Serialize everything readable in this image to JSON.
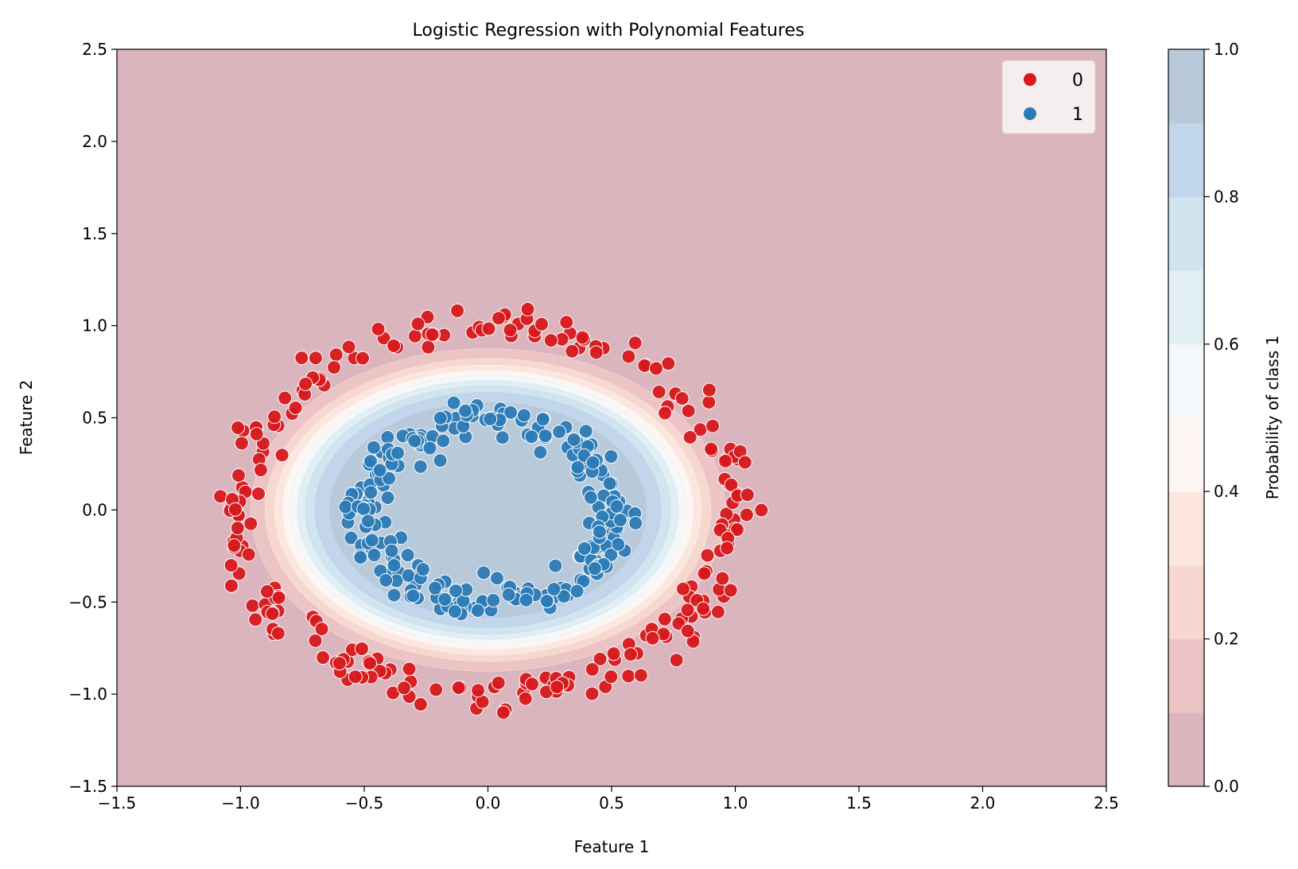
{
  "chart_data": {
    "type": "scatter",
    "title": "Logistic Regression with Polynomial Features",
    "xlabel": "Feature 1",
    "ylabel": "Feature 2",
    "xlim": [
      -1.5,
      2.5
    ],
    "ylim": [
      -1.5,
      2.5
    ],
    "x_ticks": [
      -1.5,
      -1.0,
      -0.5,
      0.0,
      0.5,
      1.0,
      1.5,
      2.0,
      2.5
    ],
    "y_ticks": [
      -1.5,
      -1.0,
      -0.5,
      0.0,
      0.5,
      1.0,
      1.5,
      2.0,
      2.5
    ],
    "x_tick_labels": [
      "−1.5",
      "−1.0",
      "−0.5",
      "0.0",
      "0.5",
      "1.0",
      "1.5",
      "2.0",
      "2.5"
    ],
    "y_tick_labels": [
      "−1.5",
      "−1.0",
      "−0.5",
      "0.0",
      "0.5",
      "1.0",
      "1.5",
      "2.0",
      "2.5"
    ],
    "grid": false,
    "legend_position": "top-right",
    "background": "filled probability contours (RdBu colormap, alpha 0.3)",
    "decision_boundary": {
      "center": [
        0.0,
        0.0
      ],
      "radius_x": 0.8,
      "radius_y": 0.73,
      "probability": 0.5
    },
    "colorbar": {
      "label": "Probability of class 1",
      "ticks": [
        0.0,
        0.2,
        0.4,
        0.6,
        0.8,
        1.0
      ],
      "tick_labels": [
        "0.0",
        "0.2",
        "0.4",
        "0.6",
        "0.8",
        "1.0"
      ],
      "levels": [
        0.0,
        0.1,
        0.2,
        0.3,
        0.4,
        0.5,
        0.6,
        0.7,
        0.8,
        0.9,
        1.0
      ],
      "colors": [
        "#dab5bd",
        "#ecc4c5",
        "#f6d8d0",
        "#fce6dd",
        "#fdf6f2",
        "#f4f8fb",
        "#e1eff5",
        "#d0e5ef",
        "#c1d6eb",
        "#b8c9da"
      ]
    },
    "series": [
      {
        "name": "0",
        "color": "#d7191c",
        "ring_radius": 1.0,
        "noise": 0.05,
        "count": 250
      },
      {
        "name": "1",
        "color": "#2c7bb6",
        "ring_radius": 0.5,
        "noise": 0.05,
        "count": 250
      }
    ]
  }
}
